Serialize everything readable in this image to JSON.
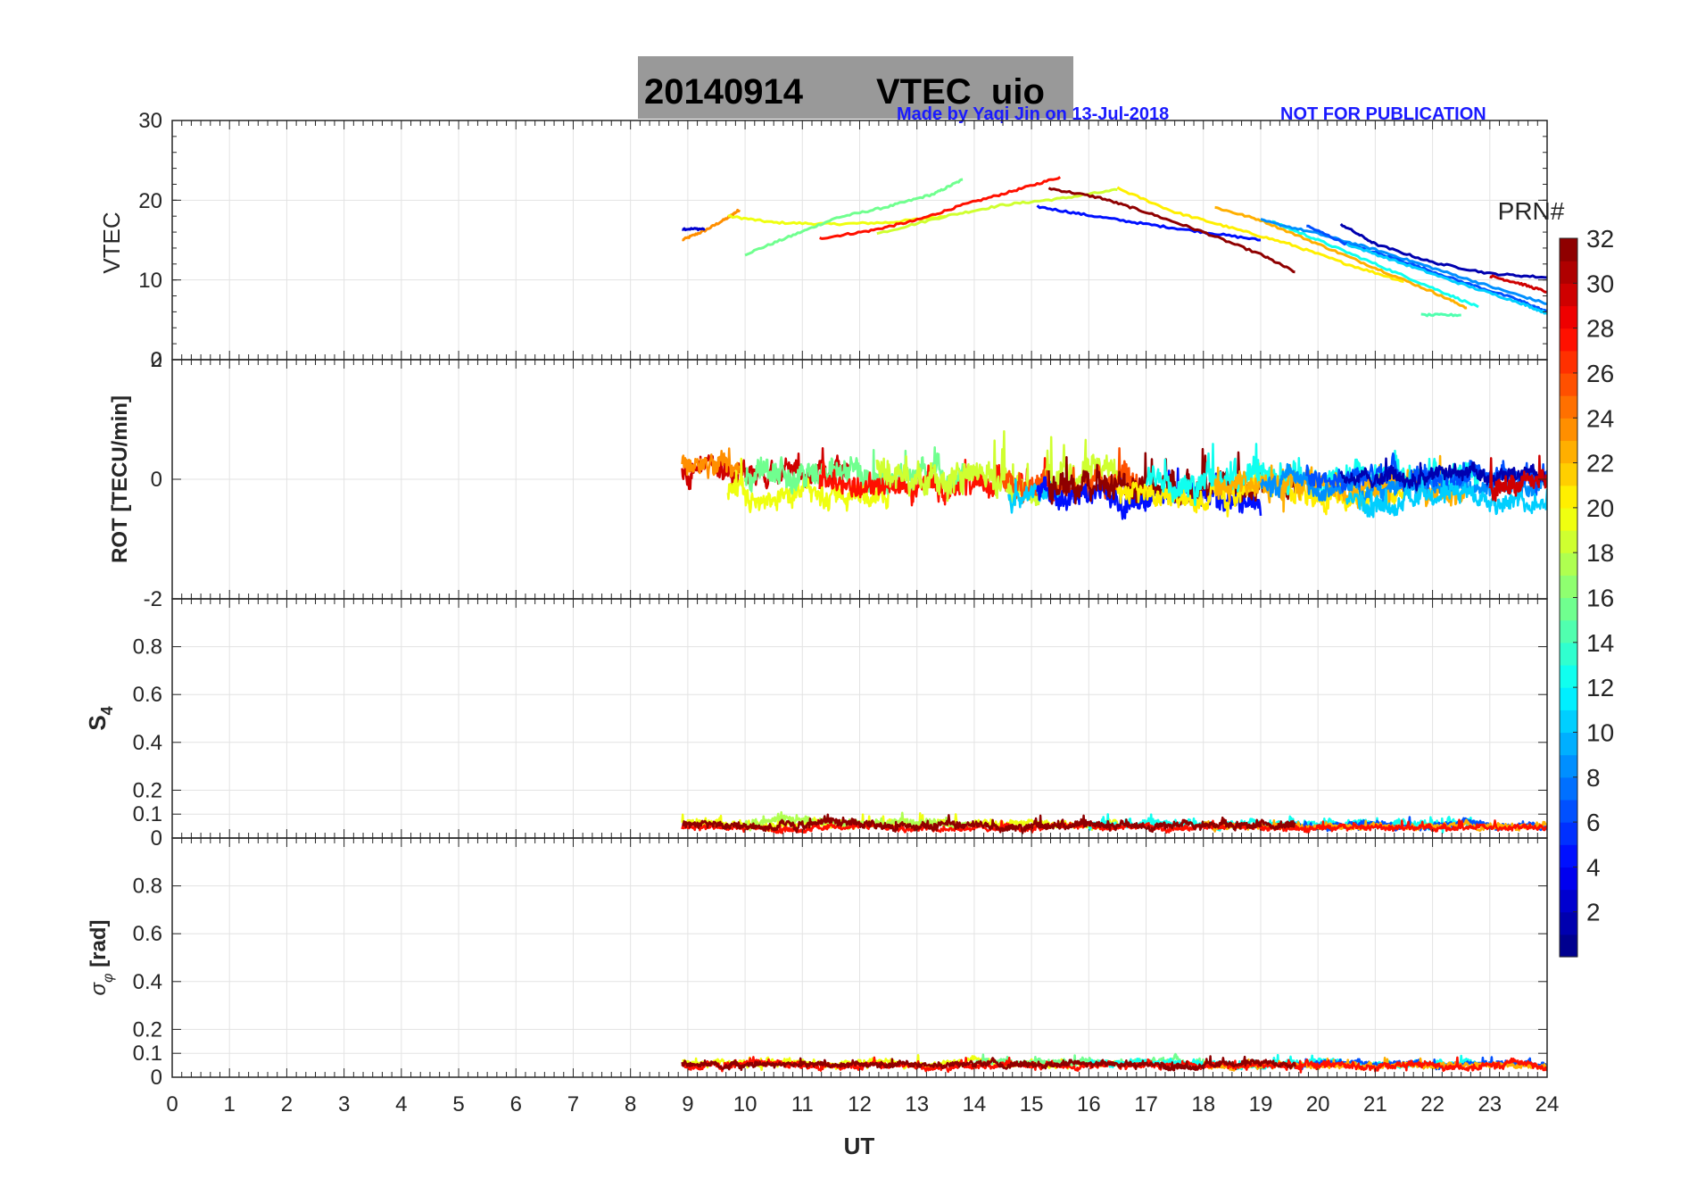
{
  "chart_data": {
    "type": "line",
    "title_date": "20140914",
    "title_label": "VTEC  uio",
    "credit": "Made by Yaqi Jin on 13-Jul-2018",
    "notice": "NOT FOR PUBLICATION",
    "xlabel": "UT",
    "xlim": [
      0,
      24
    ],
    "xticks": [
      "0",
      "1",
      "2",
      "3",
      "4",
      "5",
      "6",
      "7",
      "8",
      "9",
      "10",
      "11",
      "12",
      "13",
      "14",
      "15",
      "16",
      "17",
      "18",
      "19",
      "20",
      "21",
      "22",
      "23",
      "24"
    ],
    "colorbar": {
      "label": "PRN#",
      "range": [
        1,
        32
      ],
      "ticks": [
        "2",
        "4",
        "6",
        "8",
        "10",
        "12",
        "14",
        "16",
        "18",
        "20",
        "22",
        "24",
        "26",
        "28",
        "30",
        "32"
      ]
    },
    "panels": [
      {
        "id": "vtec",
        "ylabel": "VTEC",
        "ylim": [
          0,
          30
        ],
        "yticks": [
          "0",
          "10",
          "20",
          "30"
        ],
        "series": [
          {
            "prn": 24,
            "x": [
              8.9,
              9.3,
              9.7,
              9.9
            ],
            "y": [
              15.0,
              16.2,
              17.8,
              18.8
            ]
          },
          {
            "prn": 3,
            "x": [
              8.9,
              9.3
            ],
            "y": [
              16.4,
              16.4
            ]
          },
          {
            "prn": 20,
            "x": [
              9.7,
              10.5,
              11.5,
              12.5,
              13.5
            ],
            "y": [
              18.0,
              17.2,
              17.0,
              17.2,
              18.0
            ]
          },
          {
            "prn": 16,
            "x": [
              10.0,
              10.8,
              11.6,
              12.5,
              13.3,
              13.8
            ],
            "y": [
              13.2,
              15.5,
              17.8,
              19.2,
              20.8,
              22.6
            ]
          },
          {
            "prn": 28,
            "x": [
              11.3,
              12.2,
              13.0,
              13.8,
              14.7,
              15.5
            ],
            "y": [
              15.2,
              16.2,
              17.5,
              19.4,
              21.2,
              22.9
            ]
          },
          {
            "prn": 19,
            "x": [
              12.3,
              13.5,
              14.5,
              15.5,
              16.5
            ],
            "y": [
              15.8,
              18.0,
              19.4,
              20.2,
              21.3
            ]
          },
          {
            "prn": 5,
            "x": [
              15.1,
              16.0,
              17.0,
              18.0,
              19.0
            ],
            "y": [
              19.2,
              18.1,
              17.0,
              16.0,
              15.0
            ]
          },
          {
            "prn": 32,
            "x": [
              15.3,
              16.2,
              17.0,
              18.0,
              19.0,
              19.6
            ],
            "y": [
              21.5,
              20.3,
              18.5,
              16.0,
              13.2,
              11.0
            ]
          },
          {
            "prn": 21,
            "x": [
              16.5,
              17.5,
              18.5,
              19.5,
              20.5,
              21.5
            ],
            "y": [
              21.5,
              18.5,
              16.5,
              14.5,
              12.0,
              9.8
            ]
          },
          {
            "prn": 23,
            "x": [
              18.2,
              19.0,
              20.0,
              21.0,
              22.0,
              22.6
            ],
            "y": [
              19.1,
              17.5,
              14.5,
              11.5,
              8.5,
              6.5
            ]
          },
          {
            "prn": 13,
            "x": [
              19.2,
              20.0,
              21.0,
              22.0,
              22.8
            ],
            "y": [
              17.3,
              15.0,
              12.0,
              9.0,
              6.6
            ]
          },
          {
            "prn": 9,
            "x": [
              19.0,
              20.0,
              21.0,
              22.0,
              23.0,
              24.0
            ],
            "y": [
              17.5,
              15.8,
              13.8,
              11.5,
              9.2,
              7.0
            ]
          },
          {
            "prn": 7,
            "x": [
              19.8,
              20.5,
              21.5,
              22.5,
              23.5,
              24.0
            ],
            "y": [
              16.8,
              14.5,
              12.3,
              9.8,
              7.5,
              6.0
            ]
          },
          {
            "prn": 2,
            "x": [
              20.4,
              21.0,
              22.0,
              23.0,
              24.0
            ],
            "y": [
              17.0,
              14.5,
              12.2,
              10.8,
              10.3
            ]
          },
          {
            "prn": 11,
            "x": [
              20.5,
              21.5,
              22.5,
              23.5,
              24.0
            ],
            "y": [
              14.5,
              12.0,
              9.5,
              7.2,
              5.8
            ]
          },
          {
            "prn": 30,
            "x": [
              23.0,
              23.5,
              24.0
            ],
            "y": [
              10.5,
              9.6,
              8.5
            ]
          },
          {
            "prn": 15,
            "x": [
              21.8,
              22.5
            ],
            "y": [
              5.6,
              5.6
            ]
          }
        ]
      },
      {
        "id": "rot",
        "ylabel": "ROT [TECU/min]",
        "ylim": [
          -2,
          2
        ],
        "yticks": [
          "-2",
          "0",
          "2"
        ],
        "series": [
          {
            "prn": 30,
            "x0": 8.9,
            "x1": 11.8,
            "base": 0.15,
            "amp": 0.28
          },
          {
            "prn": 24,
            "x0": 8.9,
            "x1": 9.9,
            "base": 0.2,
            "amp": 0.25
          },
          {
            "prn": 20,
            "x0": 9.7,
            "x1": 12.5,
            "base": -0.3,
            "amp": 0.3
          },
          {
            "prn": 16,
            "x0": 10.0,
            "x1": 13.8,
            "base": 0.1,
            "amp": 0.35
          },
          {
            "prn": 28,
            "x0": 11.3,
            "x1": 15.5,
            "base": -0.1,
            "amp": 0.3
          },
          {
            "prn": 19,
            "x0": 12.3,
            "x1": 16.5,
            "base": 0.05,
            "amp": 0.4
          },
          {
            "prn": 26,
            "x0": 14.5,
            "x1": 17.0,
            "base": 0.0,
            "amp": 0.35
          },
          {
            "prn": 11,
            "x0": 14.6,
            "x1": 15.5,
            "base": -0.3,
            "amp": 0.25
          },
          {
            "prn": 5,
            "x0": 15.1,
            "x1": 19.0,
            "base": -0.3,
            "amp": 0.3
          },
          {
            "prn": 32,
            "x0": 15.3,
            "x1": 19.6,
            "base": -0.1,
            "amp": 0.35
          },
          {
            "prn": 21,
            "x0": 16.5,
            "x1": 21.5,
            "base": -0.25,
            "amp": 0.3
          },
          {
            "prn": 13,
            "x0": 17.0,
            "x1": 22.8,
            "base": 0.05,
            "amp": 0.35
          },
          {
            "prn": 23,
            "x0": 18.2,
            "x1": 22.6,
            "base": -0.1,
            "amp": 0.3
          },
          {
            "prn": 9,
            "x0": 19.0,
            "x1": 24.0,
            "base": -0.1,
            "amp": 0.25
          },
          {
            "prn": 7,
            "x0": 19.8,
            "x1": 24.0,
            "base": 0.05,
            "amp": 0.3
          },
          {
            "prn": 11,
            "x0": 20.5,
            "x1": 24.0,
            "base": -0.3,
            "amp": 0.25
          },
          {
            "prn": 2,
            "x0": 20.4,
            "x1": 24.0,
            "base": 0.05,
            "amp": 0.2
          },
          {
            "prn": 30,
            "x0": 23.0,
            "x1": 24.0,
            "base": -0.05,
            "amp": 0.3
          }
        ]
      },
      {
        "id": "s4",
        "ylabel": "S",
        "ylabel_sub": "4",
        "ylim": [
          0,
          1
        ],
        "yticks": [
          "0",
          "0.1",
          "0.2",
          "0.4",
          "0.6",
          "0.8"
        ],
        "ytick_values": [
          0,
          0.1,
          0.2,
          0.4,
          0.6,
          0.8
        ],
        "series": [
          {
            "prn": 20,
            "x0": 8.9,
            "x1": 16.5,
            "base": 0.06,
            "amp": 0.025
          },
          {
            "prn": 18,
            "x0": 10.0,
            "x1": 14.0,
            "base": 0.065,
            "amp": 0.025
          },
          {
            "prn": 13,
            "x0": 16.0,
            "x1": 22.8,
            "base": 0.06,
            "amp": 0.025
          },
          {
            "prn": 7,
            "x0": 19.5,
            "x1": 24.0,
            "base": 0.055,
            "amp": 0.02
          },
          {
            "prn": 23,
            "x0": 18.0,
            "x1": 24.0,
            "base": 0.05,
            "amp": 0.02
          },
          {
            "prn": 28,
            "x0": 8.9,
            "x1": 24.0,
            "base": 0.045,
            "amp": 0.018
          },
          {
            "prn": 32,
            "x0": 8.9,
            "x1": 19.6,
            "base": 0.055,
            "amp": 0.025
          }
        ]
      },
      {
        "id": "sigphi",
        "ylabel": "[rad]",
        "ylabel_prefix": "σ",
        "ylabel_sub": "φ",
        "ylim": [
          0,
          1
        ],
        "yticks": [
          "0",
          "0.1",
          "0.2",
          "0.4",
          "0.6",
          "0.8"
        ],
        "ytick_values": [
          0,
          0.1,
          0.2,
          0.4,
          0.6,
          0.8
        ],
        "series": [
          {
            "prn": 20,
            "x0": 8.9,
            "x1": 16.5,
            "base": 0.06,
            "amp": 0.02
          },
          {
            "prn": 16,
            "x0": 14.0,
            "x1": 18.0,
            "base": 0.065,
            "amp": 0.025
          },
          {
            "prn": 13,
            "x0": 16.0,
            "x1": 22.8,
            "base": 0.06,
            "amp": 0.02
          },
          {
            "prn": 7,
            "x0": 19.5,
            "x1": 24.0,
            "base": 0.055,
            "amp": 0.018
          },
          {
            "prn": 23,
            "x0": 18.0,
            "x1": 24.0,
            "base": 0.05,
            "amp": 0.018
          },
          {
            "prn": 28,
            "x0": 8.9,
            "x1": 24.0,
            "base": 0.05,
            "amp": 0.02
          },
          {
            "prn": 32,
            "x0": 8.9,
            "x1": 19.6,
            "base": 0.055,
            "amp": 0.02
          }
        ]
      }
    ]
  }
}
